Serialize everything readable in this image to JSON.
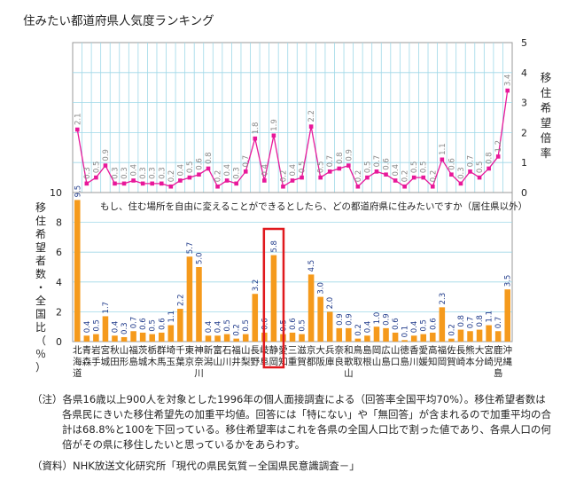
{
  "title": "住みたい都道府県人気度ランキング",
  "question": "もし、住む場所を自由に変えることができるとしたら、どの都道府県に住みたいですか（居住県以外）",
  "right_axis_title": [
    "移",
    "住",
    "希",
    "望",
    "倍",
    "率"
  ],
  "left_axis_title": [
    "移",
    "住",
    "希",
    "望",
    "者",
    "数",
    "・",
    "全",
    "国",
    "比",
    "（",
    "％",
    "）"
  ],
  "note_lines": [
    "（注）各県16歳以上900人を対象とした1996年の個人面接調査による（回答率全国平均70%）。移住希望者数は",
    "各県民にきいた移住希望先の加重平均値。回答には「特にない」や「無回答」が含まれるので加重平均の合",
    "計は68.8%と100を下回っている。移住希望率はこれを各県の全国人口比で割った値であり、各県人口の何",
    "倍がその県に移住したいと思っているかをあらわす。"
  ],
  "source": "（資料）NHK放送文化研究所「現代の県民気質－全国県民意識調査－」",
  "chart_data": {
    "type": "bar+line",
    "categories": [
      "北海道",
      "青森",
      "岩手",
      "宮城",
      "秋田",
      "山形",
      "福島",
      "茨城",
      "栃木",
      "群馬",
      "埼玉",
      "千葉",
      "東京",
      "神奈川",
      "新潟",
      "富山",
      "石川",
      "福井",
      "山梨",
      "長野",
      "岐阜",
      "静岡",
      "愛知",
      "三重",
      "滋賀",
      "京都",
      "大阪",
      "兵庫",
      "奈良",
      "和歌山",
      "鳥取",
      "島根",
      "岡山",
      "広島",
      "山口",
      "徳島",
      "香川",
      "愛媛",
      "高知",
      "福岡",
      "佐賀",
      "長崎",
      "熊本",
      "大分",
      "宮崎",
      "鹿児島",
      "沖縄"
    ],
    "tick_labels_top": [
      "北",
      "青",
      "岩",
      "宮",
      "秋",
      "山",
      "福",
      "茨",
      "栃",
      "群",
      "埼",
      "千",
      "東",
      "神",
      "新",
      "富",
      "石",
      "福",
      "山",
      "長",
      "岐",
      "静",
      "愛",
      "三",
      "滋",
      "京",
      "大",
      "兵",
      "奈",
      "和",
      "鳥",
      "島",
      "岡",
      "広",
      "山",
      "徳",
      "香",
      "愛",
      "高",
      "福",
      "佐",
      "長",
      "熊",
      "大",
      "宮",
      "鹿",
      "沖"
    ],
    "tick_labels_bottom": [
      "海",
      "森",
      "手",
      "城",
      "田",
      "形",
      "島",
      "城",
      "木",
      "馬",
      "玉",
      "葉",
      "京",
      "奈",
      "潟",
      "山",
      "川",
      "井",
      "梨",
      "野",
      "阜",
      "岡",
      "知",
      "重",
      "賀",
      "都",
      "阪",
      "庫",
      "良",
      "歌",
      "取",
      "根",
      "山",
      "島",
      "口",
      "島",
      "川",
      "媛",
      "知",
      "岡",
      "賀",
      "崎",
      "本",
      "分",
      "崎",
      "児",
      "縄"
    ],
    "tick_labels_third": [
      "道",
      "",
      "",
      "",
      "",
      "",
      "",
      "",
      "",
      "",
      "",
      "",
      "",
      "川",
      "",
      "",
      "",
      "",
      "",
      "",
      "",
      "",
      "",
      "",
      "",
      "",
      "",
      "",
      "",
      "山",
      "",
      "",
      "",
      "",
      "",
      "",
      "",
      "",
      "",
      "",
      "",
      "",
      "",
      "",
      "",
      "島",
      ""
    ],
    "bar_series": {
      "values": [
        9.5,
        0.4,
        0.5,
        1.7,
        0.4,
        0.3,
        0.7,
        0.6,
        0.5,
        0.6,
        1.1,
        2.2,
        5.7,
        5.0,
        0.4,
        0.4,
        0.5,
        0.2,
        0.5,
        3.2,
        0.6,
        5.8,
        0.5,
        0.6,
        0.5,
        4.5,
        3.0,
        2.0,
        0.9,
        0.9,
        0.2,
        0.4,
        1.0,
        0.9,
        0.6,
        0.1,
        0.4,
        0.5,
        0.6,
        2.3,
        0.2,
        0.8,
        0.7,
        0.8,
        1.1,
        0.7,
        3.5
      ],
      "color": "#f59a1c"
    },
    "line_series": {
      "values": [
        2.1,
        0.3,
        0.5,
        0.9,
        0.3,
        0.3,
        0.4,
        0.3,
        0.3,
        0.3,
        0.2,
        0.4,
        0.5,
        0.6,
        0.8,
        0.2,
        0.4,
        0.3,
        0.7,
        1.8,
        0.4,
        1.9,
        0.2,
        0.4,
        0.5,
        2.2,
        0.5,
        0.7,
        0.8,
        0.9,
        0.2,
        0.5,
        0.7,
        0.6,
        0.4,
        0.2,
        0.5,
        0.5,
        0.2,
        1.1,
        0.6,
        0.3,
        0.7,
        0.5,
        0.8,
        1.2,
        3.4
      ],
      "color": "#e8189a"
    },
    "bar_ylim": [
      0,
      10
    ],
    "bar_yticks": [
      "0",
      "2",
      "4",
      "6",
      "8",
      "10"
    ],
    "line_ylim": [
      0,
      5
    ],
    "line_yticks": [
      "0",
      "1",
      "2",
      "3",
      "4",
      "5"
    ],
    "highlight_category": "静岡",
    "grid": true
  }
}
